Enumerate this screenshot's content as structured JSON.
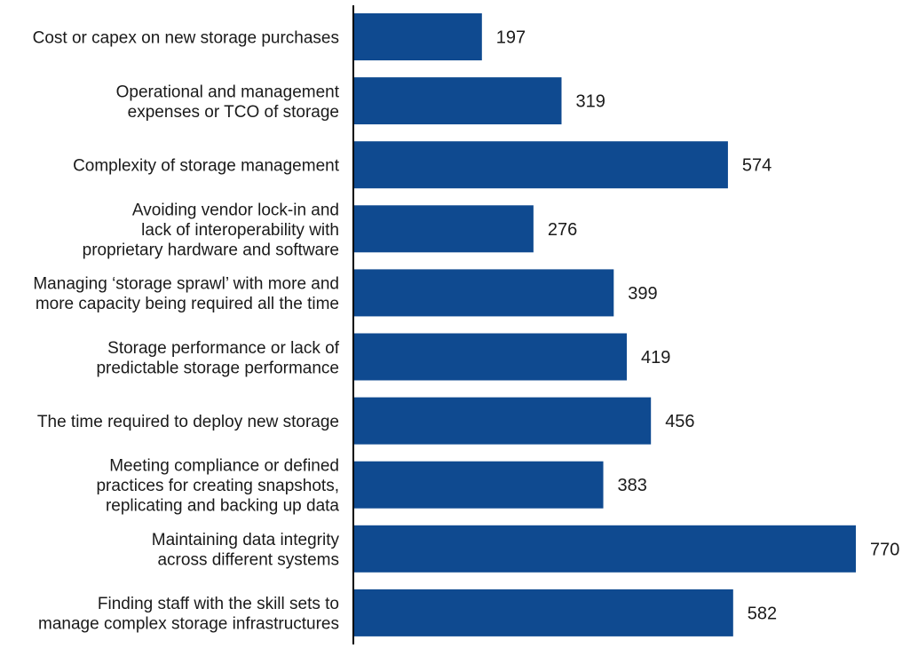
{
  "chart_data": {
    "type": "bar",
    "orientation": "horizontal",
    "categories": [
      [
        "Cost or capex on new storage purchases"
      ],
      [
        "Operational and management",
        "expenses or TCO of storage"
      ],
      [
        "Complexity of storage management"
      ],
      [
        "Avoiding vendor lock-in and",
        "lack of interoperability with",
        "proprietary hardware and software"
      ],
      [
        "Managing ‘storage sprawl’ with more and",
        "more capacity being required all the time"
      ],
      [
        "Storage performance or lack of",
        "predictable storage performance"
      ],
      [
        "The time required to deploy new storage"
      ],
      [
        "Meeting compliance or defined",
        "practices for creating snapshots,",
        "replicating and backing up data"
      ],
      [
        "Maintaining data integrity",
        "across different systems"
      ],
      [
        "Finding staff with the skill sets to",
        "manage complex storage infrastructures"
      ]
    ],
    "values": [
      197,
      319,
      574,
      276,
      399,
      419,
      456,
      383,
      770,
      582
    ],
    "value_labels": [
      "197",
      "319",
      "574",
      "276",
      "399",
      "419",
      "456",
      "383",
      "770",
      "582"
    ],
    "title": "",
    "xlabel": "",
    "ylabel": "",
    "xlim": [
      0,
      770
    ],
    "grid": false,
    "legend": "none",
    "bar_color": "#0f4a90",
    "axis_color": "#000000",
    "text_color": "#1a1a1a"
  }
}
